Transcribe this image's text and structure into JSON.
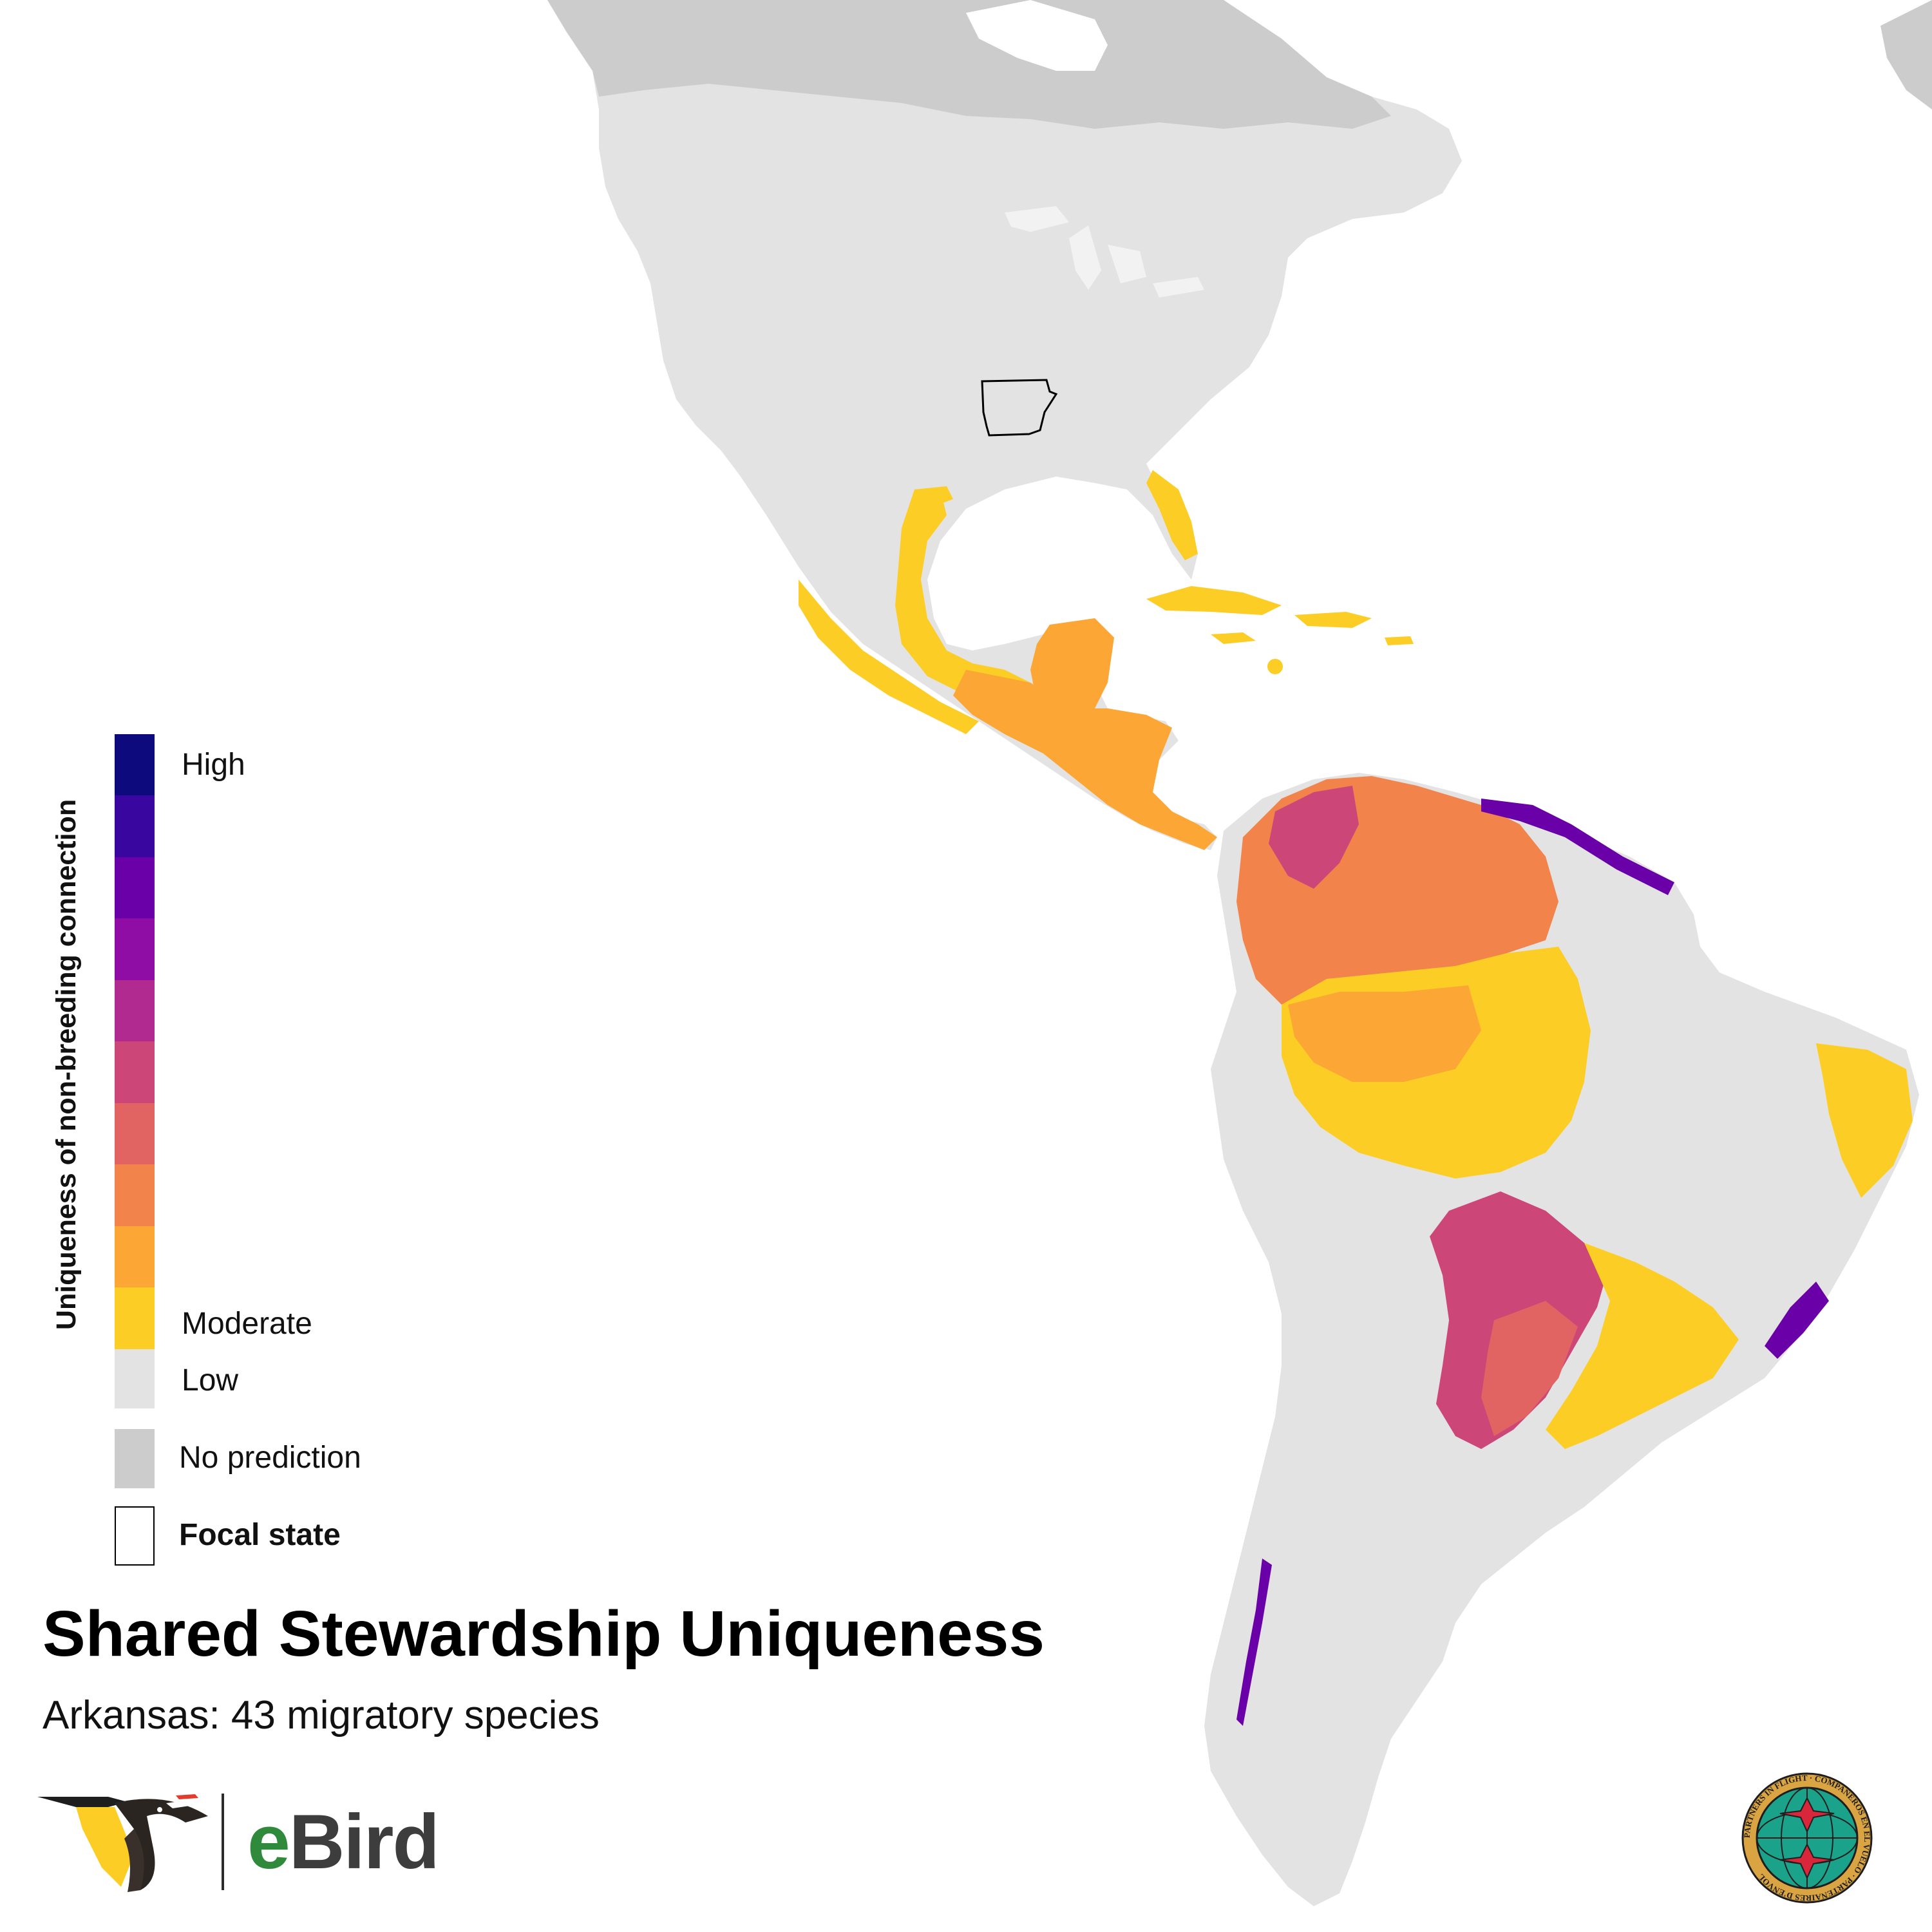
{
  "map": {
    "focal_state": "Arkansas",
    "colors": {
      "ocean": "#ffffff",
      "land_low": "#e3e3e3",
      "no_prediction": "#cccccc",
      "boundary": "#f4f4f4",
      "focal_outline": "#000000"
    }
  },
  "legend": {
    "title": "Uniqueness of non-breeding connection",
    "ramp": [
      {
        "color": "#0c0a7c"
      },
      {
        "color": "#3a06a0"
      },
      {
        "color": "#6a00a8"
      },
      {
        "color": "#8f0da4"
      },
      {
        "color": "#b12a90"
      },
      {
        "color": "#cc4778"
      },
      {
        "color": "#e16462"
      },
      {
        "color": "#f2844b"
      },
      {
        "color": "#fca636"
      },
      {
        "color": "#fcce25"
      },
      {
        "color": "#e3e3e3"
      }
    ],
    "label_high": "High",
    "label_moderate": "Moderate",
    "label_low": "Low",
    "label_no_prediction": "No prediction",
    "label_focal_state": "Focal state"
  },
  "title": "Shared Stewardship Uniqueness",
  "subtitle": "Arkansas: 43 migratory species",
  "logos": {
    "ebird_prefix": "e",
    "ebird_suffix": "Bird",
    "pif_text": "PARTNERS IN FLIGHT · COMPAÑEROS EN EL VUELO · PARTENAIRES D'ENVOL"
  }
}
